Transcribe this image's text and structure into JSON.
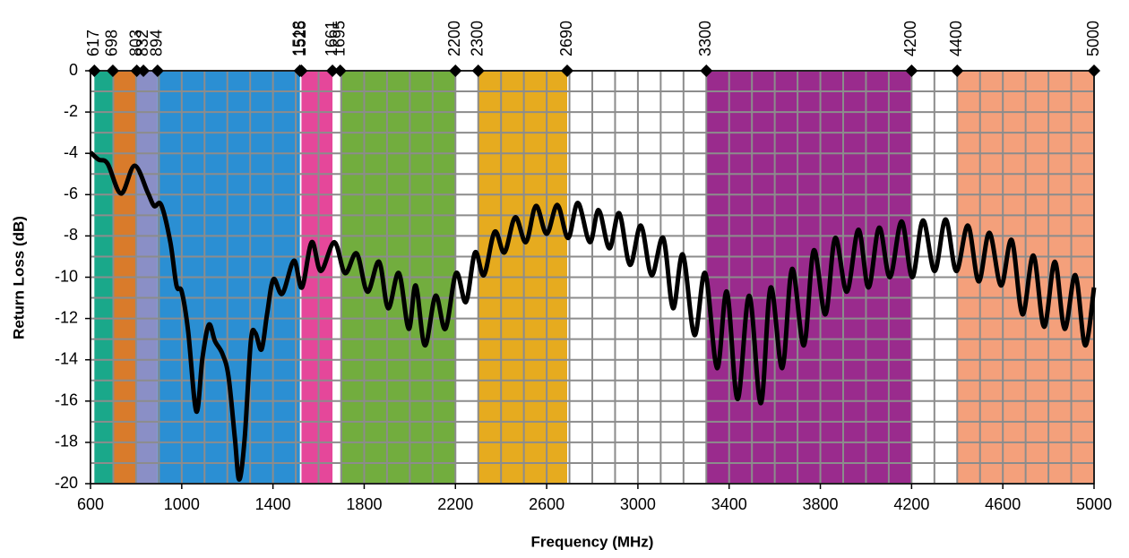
{
  "chart_data": {
    "type": "line",
    "x_label": "Frequency (MHz)",
    "y_label": "Return Loss (dB)",
    "xlim": [
      600,
      5000
    ],
    "ylim": [
      -20,
      0
    ],
    "xticks": [
      600,
      1000,
      1400,
      1800,
      2200,
      2600,
      3000,
      3400,
      3800,
      4200,
      4600,
      5000
    ],
    "yticks": [
      0,
      -2,
      -4,
      -6,
      -8,
      -10,
      -12,
      -14,
      -16,
      -18,
      -20
    ],
    "grid": true,
    "markers": [
      617,
      698,
      803,
      832,
      894,
      1518,
      1525,
      1661,
      1695,
      2200,
      2300,
      2690,
      3300,
      4200,
      4400,
      5000
    ],
    "bands": [
      {
        "from": 617,
        "to": 698,
        "color": "#1aa88a"
      },
      {
        "from": 698,
        "to": 803,
        "color": "#d97b2b"
      },
      {
        "from": 803,
        "to": 894,
        "color": "#8a8fc6"
      },
      {
        "from": 894,
        "to": 1518,
        "color": "#2b8fd3"
      },
      {
        "from": 1525,
        "to": 1661,
        "color": "#e5479a"
      },
      {
        "from": 1695,
        "to": 2200,
        "color": "#72ad3e"
      },
      {
        "from": 2300,
        "to": 2690,
        "color": "#e6ab1f"
      },
      {
        "from": 3300,
        "to": 4200,
        "color": "#9a2b8d"
      },
      {
        "from": 4400,
        "to": 5000,
        "color": "#f4a07b"
      }
    ],
    "color": "#000000",
    "x": [
      600,
      635,
      675,
      734,
      793,
      851,
      879,
      910,
      950,
      977,
      1000,
      1028,
      1064,
      1091,
      1119,
      1146,
      1178,
      1205,
      1233,
      1252,
      1276,
      1303,
      1323,
      1350,
      1374,
      1402,
      1441,
      1492,
      1527,
      1570,
      1610,
      1669,
      1716,
      1767,
      1814,
      1865,
      1905,
      1952,
      1995,
      2026,
      2066,
      2113,
      2156,
      2203,
      2246,
      2286,
      2325,
      2372,
      2415,
      2462,
      2509,
      2553,
      2600,
      2647,
      2694,
      2737,
      2789,
      2828,
      2875,
      2918,
      2965,
      3013,
      3060,
      3111,
      3154,
      3197,
      3248,
      3295,
      3347,
      3390,
      3437,
      3488,
      3539,
      3582,
      3633,
      3676,
      3728,
      3771,
      3822,
      3865,
      3916,
      3967,
      4011,
      4058,
      4105,
      4156,
      4203,
      4250,
      4301,
      4349,
      4396,
      4447,
      4494,
      4541,
      4592,
      4639,
      4686,
      4734,
      4781,
      4828,
      4871,
      4918,
      4961,
      5000
    ],
    "values": [
      -3.95,
      -4.3,
      -4.5,
      -5.95,
      -4.6,
      -5.9,
      -6.55,
      -6.5,
      -8.3,
      -10.4,
      -10.7,
      -12.6,
      -16.5,
      -13.9,
      -12.3,
      -13.1,
      -13.7,
      -14.8,
      -17.8,
      -19.8,
      -17.8,
      -13.1,
      -12.7,
      -13.5,
      -11.8,
      -10.1,
      -10.8,
      -9.2,
      -10.5,
      -8.3,
      -9.7,
      -8.3,
      -9.8,
      -8.85,
      -10.7,
      -9.25,
      -11.5,
      -9.8,
      -12.5,
      -10.4,
      -13.3,
      -10.9,
      -12.5,
      -9.8,
      -11.2,
      -8.8,
      -9.9,
      -7.8,
      -8.8,
      -7.1,
      -8.3,
      -6.55,
      -7.9,
      -6.5,
      -8.1,
      -6.4,
      -8.3,
      -6.75,
      -8.6,
      -6.9,
      -9.4,
      -7.5,
      -9.9,
      -8.1,
      -11.5,
      -8.9,
      -12.8,
      -9.8,
      -14.4,
      -10.7,
      -15.9,
      -10.9,
      -16.1,
      -10.5,
      -14.4,
      -9.6,
      -13.3,
      -8.7,
      -11.8,
      -8.1,
      -10.7,
      -7.7,
      -10.5,
      -7.6,
      -10.0,
      -7.3,
      -10.0,
      -7.25,
      -9.7,
      -7.2,
      -9.7,
      -7.5,
      -10.2,
      -7.85,
      -10.4,
      -8.2,
      -11.8,
      -8.95,
      -12.4,
      -9.25,
      -12.5,
      -9.9,
      -13.3,
      -10.5
    ]
  }
}
